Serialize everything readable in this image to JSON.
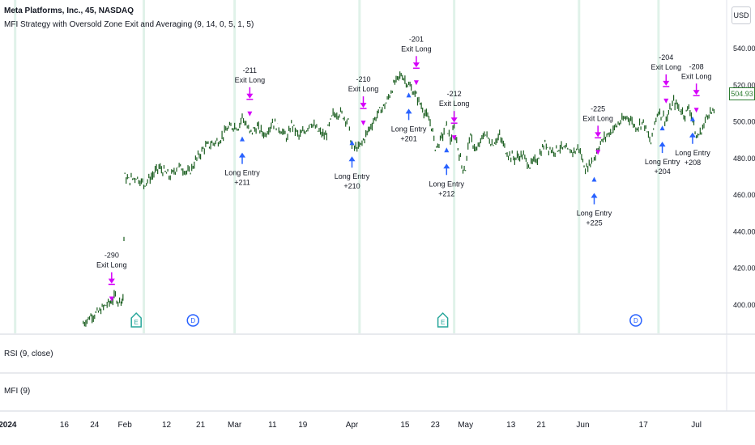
{
  "header": {
    "symbol_line": "Meta Platforms, Inc., 45, NASDAQ",
    "strategy_line": "MFI Strategy with Oversold Zone Exit and Averaging (9, 14, 0, 5, 1, 5)"
  },
  "toolbar": {
    "currency": "USD"
  },
  "panes": {
    "rsi_label": "RSI (9, close)",
    "mfi_label": "MFI (9)"
  },
  "price_tag": "504.93",
  "chart_data": {
    "type": "line",
    "title": "Meta Platforms, Inc., 45, NASDAQ",
    "y_axis": {
      "ticks": [
        540,
        520,
        500,
        480,
        460,
        440,
        420,
        400
      ],
      "ylim": [
        390,
        550
      ],
      "position": "right"
    },
    "x_axis": {
      "ticks": [
        {
          "label": "2024",
          "day": 0
        },
        {
          "label": "16",
          "day": 15
        },
        {
          "label": "24",
          "day": 23
        },
        {
          "label": "Feb",
          "day": 31
        },
        {
          "label": "12",
          "day": 42
        },
        {
          "label": "21",
          "day": 51
        },
        {
          "label": "Mar",
          "day": 60
        },
        {
          "label": "11",
          "day": 70
        },
        {
          "label": "19",
          "day": 78
        },
        {
          "label": "Apr",
          "day": 91
        },
        {
          "label": "15",
          "day": 105
        },
        {
          "label": "23",
          "day": 113
        },
        {
          "label": "May",
          "day": 121
        },
        {
          "label": "13",
          "day": 133
        },
        {
          "label": "21",
          "day": 141
        },
        {
          "label": "Jun",
          "day": 152
        },
        {
          "label": "17",
          "day": 168
        },
        {
          "label": "Jul",
          "day": 182
        }
      ],
      "range_days": [
        -2,
        190
      ]
    },
    "series": [
      {
        "days": [
          20,
          22,
          24,
          26,
          27.5,
          28.5,
          29.2,
          30,
          30.5,
          31,
          32,
          34,
          36,
          38,
          40,
          43,
          45,
          48,
          50,
          52,
          54,
          56,
          58,
          60,
          61,
          62,
          64,
          66,
          68,
          70,
          72,
          74,
          75,
          77,
          79,
          80,
          82,
          84,
          86,
          88,
          90,
          91,
          93,
          94,
          95,
          96,
          98,
          100,
          102,
          104,
          106,
          108,
          110,
          112,
          113,
          114,
          116,
          117,
          118,
          119,
          120,
          121,
          122,
          124,
          126,
          128,
          130,
          132,
          134,
          136,
          138,
          140,
          142,
          144,
          146,
          148,
          150,
          151,
          152,
          153,
          154,
          155,
          156,
          158,
          160,
          162,
          164,
          166,
          168,
          169,
          170,
          171,
          172,
          174,
          176,
          178,
          179,
          180,
          181,
          182,
          183,
          184,
          185,
          187
        ],
        "prices": [
          390,
          394,
          396,
          400,
          402,
          405,
          402,
          403,
          404,
          470,
          468,
          470,
          466,
          470,
          475,
          470,
          476,
          472,
          480,
          486,
          488,
          490,
          496,
          498,
          497,
          503,
          494,
          497,
          493,
          500,
          496,
          491,
          499,
          492,
          496,
          500,
          495,
          492,
          504,
          505,
          500,
          486,
          486,
          490,
          494,
          498,
          505,
          510,
          520,
          526,
          520,
          514,
          506,
          498,
          486,
          488,
          498,
          490,
          496,
          486,
          476,
          474,
          492,
          484,
          494,
          488,
          492,
          483,
          480,
          482,
          476,
          480,
          488,
          484,
          486,
          484,
          484,
          486,
          478,
          474,
          478,
          480,
          486,
          492,
          496,
          500,
          503,
          497,
          500,
          494,
          488,
          500,
          506,
          501,
          511,
          506,
          504,
          508,
          502,
          491,
          494,
          498,
          505,
          505
        ]
      }
    ],
    "markers": [
      {
        "type": "exit",
        "day": 27.5,
        "price": 402,
        "label": "Exit Long",
        "value": "-290"
      },
      {
        "type": "entry",
        "day": 62,
        "price": 492,
        "label": "Long Entry",
        "value": "+211"
      },
      {
        "type": "exit",
        "day": 64,
        "price": 503,
        "label": "Exit Long",
        "value": "-211"
      },
      {
        "type": "entry",
        "day": 91,
        "price": 490,
        "label": "Long Entry",
        "value": "+210"
      },
      {
        "type": "exit",
        "day": 94,
        "price": 498,
        "label": "Exit Long",
        "value": "-210"
      },
      {
        "type": "entry",
        "day": 106,
        "price": 516,
        "label": "Long Entry",
        "value": "+201"
      },
      {
        "type": "exit",
        "day": 108,
        "price": 520,
        "label": "Exit Long",
        "value": "-201"
      },
      {
        "type": "entry",
        "day": 116,
        "price": 486,
        "label": "Long Entry",
        "value": "+212"
      },
      {
        "type": "exit",
        "day": 118,
        "price": 490,
        "label": "Exit Long",
        "value": "-212"
      },
      {
        "type": "entry",
        "day": 155,
        "price": 470,
        "label": "Long Entry",
        "value": "+225"
      },
      {
        "type": "exit",
        "day": 156,
        "price": 482,
        "label": "Exit Long",
        "value": "-225"
      },
      {
        "type": "entry",
        "day": 173,
        "price": 498,
        "label": "Long Entry",
        "value": "+204"
      },
      {
        "type": "exit",
        "day": 174,
        "price": 510,
        "label": "Exit Long",
        "value": "-204"
      },
      {
        "type": "entry",
        "day": 181,
        "price": 503,
        "label": "Long Entry",
        "value": "+208"
      },
      {
        "type": "exit",
        "day": 182,
        "price": 505,
        "label": "Exit Long",
        "value": "-208"
      }
    ],
    "events": [
      {
        "type": "earnings",
        "label": "E",
        "day": 34
      },
      {
        "type": "dividend",
        "label": "D",
        "day": 49
      },
      {
        "type": "earnings",
        "label": "E",
        "day": 115
      },
      {
        "type": "dividend",
        "label": "D",
        "day": 166
      }
    ],
    "session_lines_days": [
      2,
      36,
      60,
      93,
      118,
      151,
      172
    ],
    "colors": {
      "bars": "#1b5e20",
      "entry": "#2962ff",
      "exit": "#d500f9",
      "earnings": "#26a69a",
      "dividend": "#2962ff",
      "grid": "#e0f2e9"
    }
  }
}
